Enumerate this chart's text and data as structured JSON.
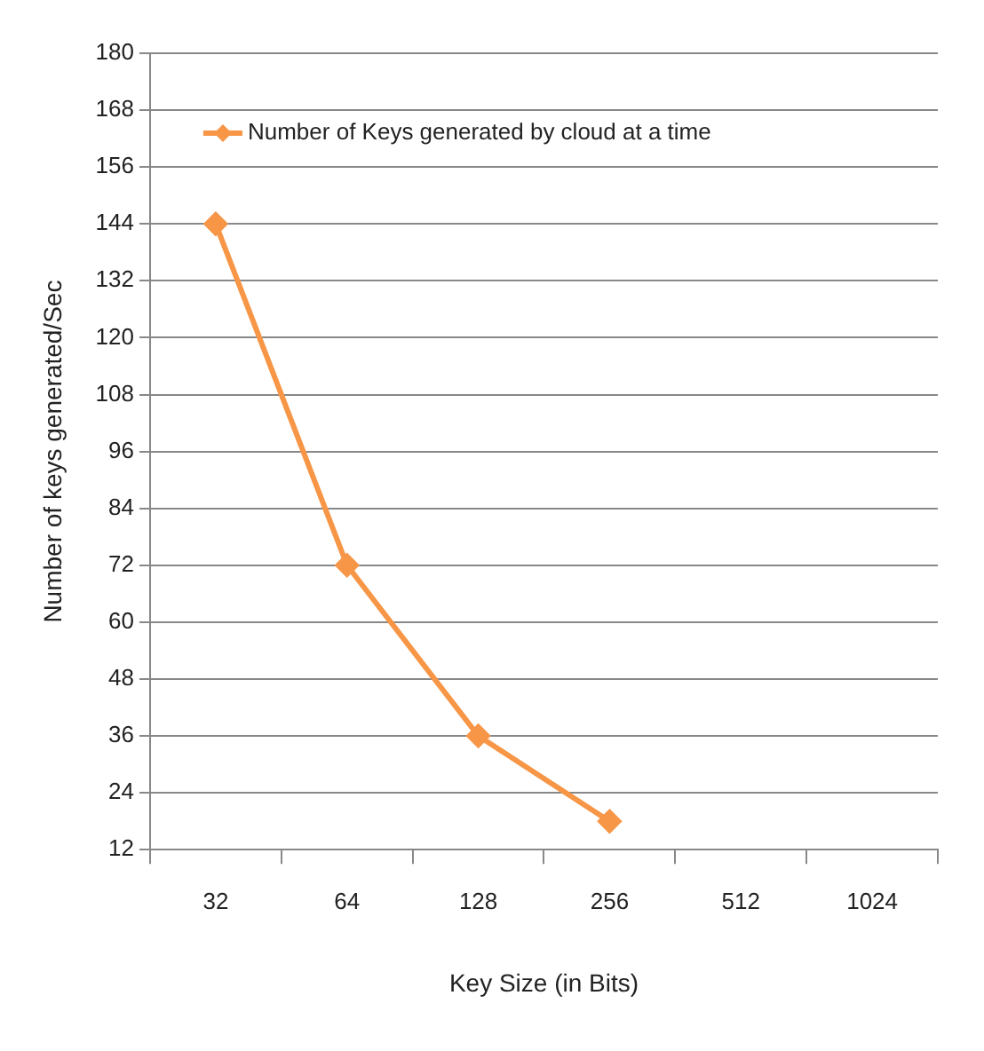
{
  "chart_data": {
    "type": "line",
    "xlabel": "Key Size (in Bits)",
    "ylabel": "Number of keys generated/Sec",
    "categories": [
      "32",
      "64",
      "128",
      "256",
      "512",
      "1024"
    ],
    "series": [
      {
        "name": "Number of Keys generated by cloud at a time",
        "color": "#f79646",
        "values": [
          144,
          72,
          36,
          18,
          null,
          null
        ]
      }
    ],
    "ylim": [
      12,
      180
    ],
    "yticks": [
      12,
      24,
      36,
      48,
      60,
      72,
      84,
      96,
      108,
      120,
      132,
      144,
      156,
      168,
      180
    ],
    "grid": "y",
    "legend": "top left",
    "marker": "diamond",
    "line_style": "solid"
  }
}
